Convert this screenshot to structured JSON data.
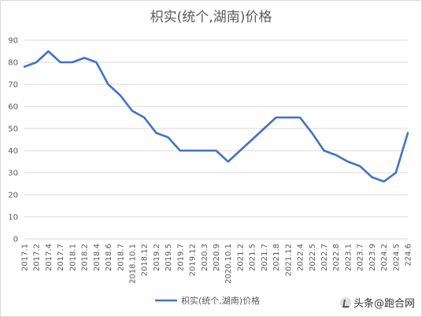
{
  "chart_data": {
    "type": "line",
    "title": "枳实(统个,湖南)价格",
    "xlabel": "",
    "ylabel": "",
    "ylim": [
      0,
      90
    ],
    "y_ticks": [
      0,
      10,
      20,
      30,
      40,
      50,
      60,
      70,
      80,
      90
    ],
    "grid": true,
    "legend_position": "bottom",
    "categories": [
      "2017.1",
      "2017.2",
      "2017.4",
      "2017.7",
      "2018.1",
      "2018.2",
      "2018.4",
      "2018.6",
      "2018.7",
      "2018.10.1",
      "2018.12",
      "2019.2",
      "2019.5",
      "2019.7",
      "2019.12",
      "2020.3",
      "2020.9",
      "2020.10.1",
      "2021.2",
      "2021.5",
      "2021.7",
      "2021.8",
      "2021.12",
      "2022.4",
      "2022.5",
      "2022.7",
      "2022.8",
      "2023.1",
      "2023.7",
      "2023.9",
      "2024.2",
      "2024.5",
      "224.6"
    ],
    "series": [
      {
        "name": "枳实(统个,湖南)价格",
        "color": "#4472c4",
        "values": [
          78,
          80,
          85,
          80,
          80,
          82,
          80,
          70,
          65,
          58,
          55,
          48,
          46,
          40,
          40,
          40,
          40,
          35,
          40,
          45,
          50,
          55,
          55,
          55,
          48,
          40,
          38,
          35,
          33,
          28,
          26,
          30,
          48
        ]
      }
    ]
  },
  "watermark": {
    "text": "头条@跑合网",
    "icon": "toutiao-logo-icon"
  }
}
